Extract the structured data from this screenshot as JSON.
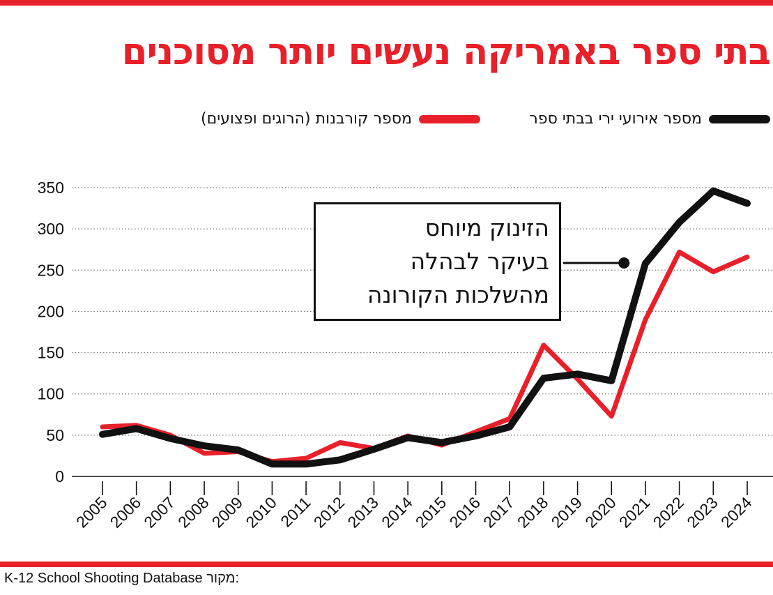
{
  "header": {
    "title": "בתי ספר באמריקה נעשים יותר מסוכנים"
  },
  "legend": [
    {
      "label": "מספר אירועי ירי בבתי ספר",
      "color": "#111111"
    },
    {
      "label": "מספר קורבנות (הרוגים ופצועים)",
      "color": "#e8202a"
    }
  ],
  "annotation": {
    "lines": [
      "הזינוק מיוחס",
      "בעיקר לבהלה",
      "מהשלכות הקורונה"
    ]
  },
  "source": {
    "label": "מקור:",
    "text": "K-12 School Shooting Database"
  },
  "colors": {
    "accent": "#e8202a",
    "incidents": "#111111",
    "victims": "#e8202a"
  },
  "chart_data": {
    "type": "line",
    "x": [
      "2005",
      "2006",
      "2007",
      "2008",
      "2009",
      "2010",
      "2011",
      "2012",
      "2013",
      "2014",
      "2015",
      "2016",
      "2017",
      "2018",
      "2019",
      "2020",
      "2021",
      "2022",
      "2023",
      "2024"
    ],
    "series": [
      {
        "name": "מספר קורבנות (הרוגים ופצועים)",
        "color": "#e8202a",
        "values": [
          60,
          62,
          50,
          28,
          30,
          18,
          22,
          41,
          34,
          49,
          38,
          54,
          70,
          159,
          118,
          73,
          190,
          272,
          248,
          266
        ]
      },
      {
        "name": "מספר אירועי ירי בבתי ספר",
        "color": "#111111",
        "values": [
          51,
          58,
          46,
          37,
          32,
          15,
          15,
          20,
          33,
          47,
          41,
          49,
          60,
          119,
          124,
          116,
          258,
          308,
          346,
          331
        ]
      }
    ],
    "yticks": [
      0,
      50,
      100,
      150,
      200,
      250,
      300,
      350
    ],
    "ylim": [
      0,
      350
    ],
    "grid": "horizontal-dotted",
    "legend_position": "top",
    "annotation_year": "2020"
  }
}
